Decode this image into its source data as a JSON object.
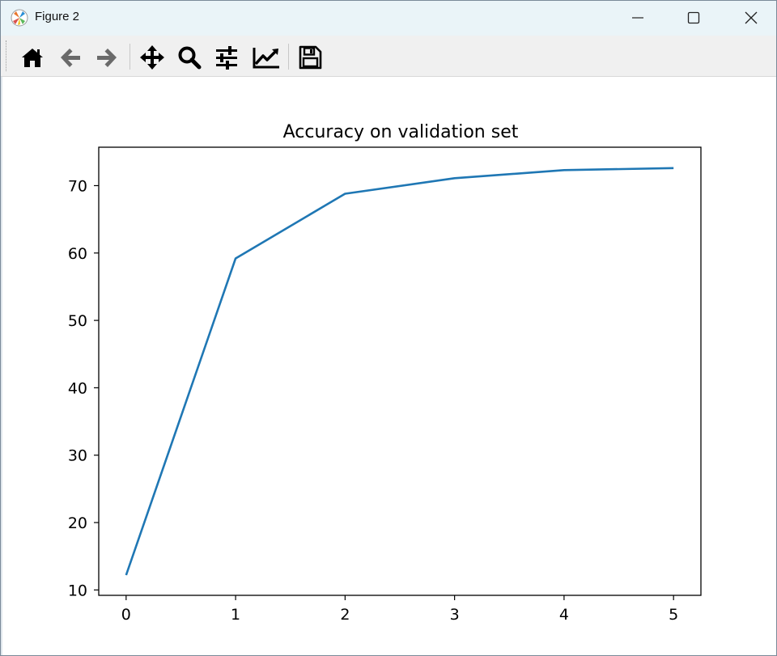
{
  "window": {
    "title": "Figure 2"
  },
  "toolbar": {
    "buttons": [
      {
        "icon": "home-icon",
        "label": "Home"
      },
      {
        "icon": "back-arrow-icon",
        "label": "Back"
      },
      {
        "icon": "forward-arrow-icon",
        "label": "Forward"
      },
      {
        "icon": "pan-move-icon",
        "label": "Pan"
      },
      {
        "icon": "zoom-magnifier-icon",
        "label": "Zoom"
      },
      {
        "icon": "subplots-sliders-icon",
        "label": "Subplots"
      },
      {
        "icon": "edit-axes-icon",
        "label": "Customize"
      },
      {
        "icon": "save-floppy-icon",
        "label": "Save"
      }
    ]
  },
  "colors": {
    "line": "#1f77b4",
    "titlebar": "#eaf4f8",
    "toolbar": "#f0f0f0"
  },
  "chart_data": {
    "type": "line",
    "title": "Accuracy on validation set",
    "xlabel": "",
    "ylabel": "",
    "x": [
      0,
      1,
      2,
      3,
      4,
      5
    ],
    "series": [
      {
        "values": [
          12.2,
          59.2,
          68.8,
          71.1,
          72.3,
          72.6
        ]
      }
    ],
    "xticks": [
      0,
      1,
      2,
      3,
      4,
      5
    ],
    "yticks": [
      10,
      20,
      30,
      40,
      50,
      60,
      70
    ],
    "xlim": [
      -0.25,
      5.25
    ],
    "ylim": [
      9.2,
      75.7
    ],
    "grid": false,
    "legend": "none"
  }
}
